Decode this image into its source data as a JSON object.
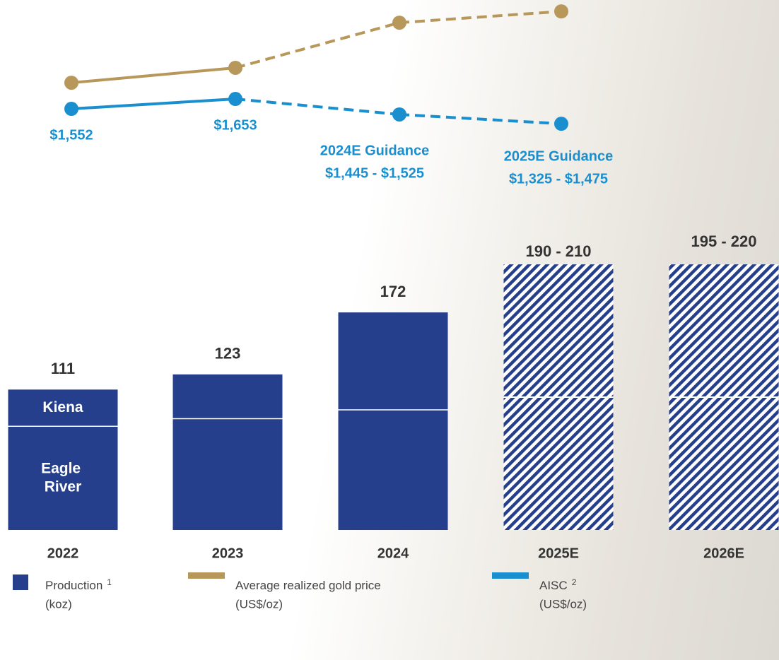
{
  "chart_data": [
    {
      "type": "bar",
      "categories": [
        "2022",
        "2023",
        "2024",
        "2025E",
        "2026E"
      ],
      "stacked": true,
      "series": [
        {
          "name": "Eagle River",
          "color": "#263f8c",
          "values": [
            82,
            88,
            95,
            105,
            105
          ]
        },
        {
          "name": "Kiena",
          "color": "#263f8c",
          "values": [
            29,
            35,
            77,
            105,
            105
          ]
        }
      ],
      "forecast": [
        false,
        false,
        false,
        true,
        true
      ],
      "totals": [
        111,
        123,
        172,
        null,
        null
      ],
      "total_ranges": [
        null,
        null,
        null,
        [
          190,
          210
        ],
        [
          195,
          220
        ]
      ],
      "total_range_labels": [
        null,
        null,
        null,
        "190 - 210",
        "195 - 220"
      ],
      "legend": {
        "label": "Production",
        "note": "1",
        "unit": "(koz)"
      }
    },
    {
      "type": "line",
      "categories": [
        "2022",
        "2023",
        "2024",
        "2025"
      ],
      "series": [
        {
          "name": "Average realized gold price",
          "unit": "(US$/oz)",
          "color": "#b8985a",
          "values": [
            1818,
            1970,
            2430,
            2545
          ],
          "estimate": [
            false,
            false,
            true,
            true
          ]
        },
        {
          "name": "AISC",
          "note": "2",
          "unit": "(US$/oz)",
          "color": "#1a8fd0",
          "values": [
            1552,
            1653,
            1495,
            1400
          ],
          "estimate": [
            false,
            false,
            true,
            true
          ],
          "value_labels": [
            "$1,552",
            "$1,653",
            null,
            null
          ]
        }
      ],
      "guidance": [
        {
          "title": "2024E Guidance",
          "range": [
            1445,
            1525
          ],
          "label": "$1,445 -  $1,525"
        },
        {
          "title": "2025E Guidance",
          "range": [
            1325,
            1475
          ],
          "label": "$1,325 - $1,475"
        }
      ]
    }
  ]
}
